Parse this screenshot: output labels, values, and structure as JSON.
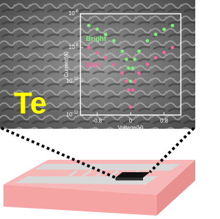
{
  "label": "Te",
  "chart_data": {
    "type": "scatter",
    "title": null,
    "x_label": "Voltage(V)",
    "y_label": "Current(A)",
    "xlim": [
      -1.2,
      1.2
    ],
    "xticks": [
      -0.8,
      0,
      0.8
    ],
    "ylim": [
      1e-12,
      1e-06
    ],
    "log_y": true,
    "yticks": [
      {
        "value": 1e-06,
        "label": "10-6"
      },
      {
        "value": 1e-08,
        "label": "10-8"
      },
      {
        "value": 1e-10,
        "label": "10-10"
      },
      {
        "value": 1e-12,
        "label": "10-12"
      }
    ],
    "x": [
      -1,
      -0.8,
      -0.6,
      -0.4,
      -0.2,
      -0.1,
      -0.05,
      0,
      0.05,
      0.1,
      0.2,
      0.4,
      0.6,
      0.8,
      1
    ],
    "series": [
      {
        "name": "Bright",
        "color": "#7ff07a",
        "values": [
          2e-07,
          1.2e-07,
          6e-08,
          2.5e-08,
          6e-09,
          2e-09,
          6e-10,
          1e-10,
          6e-10,
          2e-09,
          6e-09,
          2.5e-08,
          6e-08,
          1.2e-07,
          2e-07
        ]
      },
      {
        "name": "Dark",
        "color": "#f06aa0",
        "values": [
          1e-08,
          5e-09,
          2.5e-09,
          1e-09,
          3e-10,
          1e-10,
          3e-11,
          3e-12,
          3e-11,
          1e-10,
          3e-10,
          1e-09,
          2.5e-09,
          5e-09,
          1e-08
        ]
      }
    ]
  }
}
